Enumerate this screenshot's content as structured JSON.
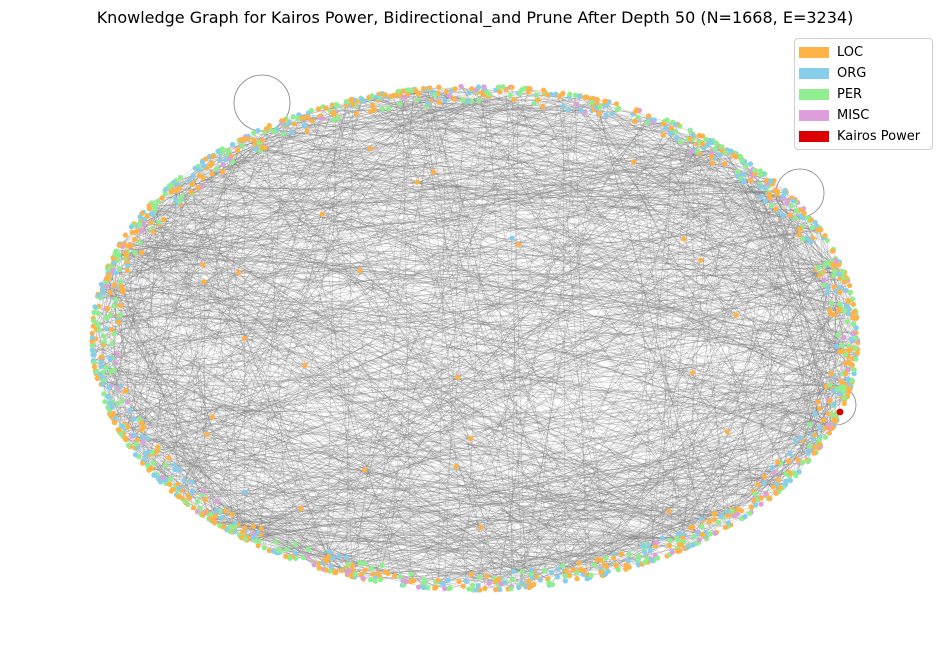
{
  "title": "Knowledge Graph for Kairos Power, Bidirectional_and Prune After Depth 50 (N=1668, E=3234)",
  "legend": [
    {
      "label": "LOC",
      "color": "#ffb347"
    },
    {
      "label": "ORG",
      "color": "#87ceeb"
    },
    {
      "label": "PER",
      "color": "#90ee90"
    },
    {
      "label": "MISC",
      "color": "#dda0dd"
    },
    {
      "label": "Kairos Power",
      "color": "#dd0000"
    }
  ],
  "colors": {
    "edge": "#808080",
    "background": "#ffffff"
  }
}
